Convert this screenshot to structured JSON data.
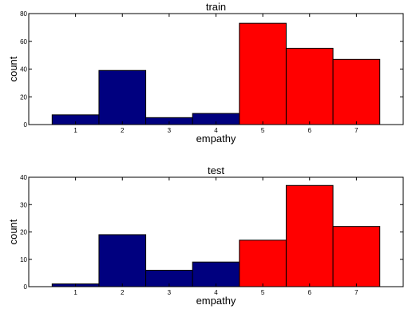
{
  "colors": {
    "low": "#00007f",
    "high": "#ff0000",
    "edge": "#000000",
    "axis": "#000000"
  },
  "chart_data": [
    {
      "type": "bar",
      "title": "train",
      "xlabel": "empathy",
      "ylabel": "count",
      "categories": [
        "1",
        "2",
        "3",
        "4",
        "5",
        "6",
        "7"
      ],
      "values": [
        7,
        39,
        5,
        8,
        73,
        55,
        47
      ],
      "bar_colors": [
        "low",
        "low",
        "low",
        "low",
        "high",
        "high",
        "high"
      ],
      "xlim": [
        0,
        8
      ],
      "ylim": [
        0,
        80
      ],
      "yticks": [
        "0",
        "20",
        "40",
        "60",
        "80"
      ],
      "grid": false
    },
    {
      "type": "bar",
      "title": "test",
      "xlabel": "empathy",
      "ylabel": "count",
      "categories": [
        "1",
        "2",
        "3",
        "4",
        "5",
        "6",
        "7"
      ],
      "values": [
        1,
        19,
        6,
        9,
        17,
        37,
        22
      ],
      "bar_colors": [
        "low",
        "low",
        "low",
        "low",
        "high",
        "high",
        "high"
      ],
      "xlim": [
        0,
        8
      ],
      "ylim": [
        0,
        40
      ],
      "yticks": [
        "0",
        "10",
        "20",
        "30",
        "40"
      ],
      "grid": false
    }
  ]
}
